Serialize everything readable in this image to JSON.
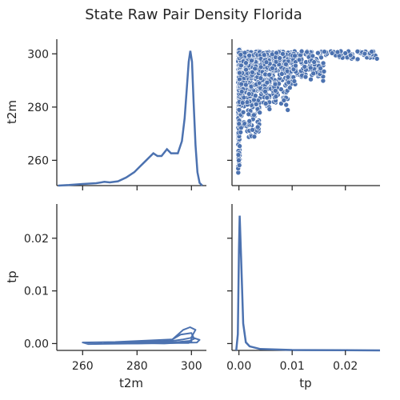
{
  "chart_data": {
    "type": "pairplot",
    "title": "State Raw Pair Density Florida",
    "variables": [
      "t2m",
      "tp"
    ],
    "line_color": "#4c72b0",
    "t2m_axis": {
      "label": "t2m",
      "lim": [
        250.5,
        305.5
      ],
      "ticks": [
        260,
        280,
        300
      ],
      "tick_labels": [
        "260",
        "280",
        "300"
      ]
    },
    "tp_axis": {
      "label": "tp",
      "lim": [
        -0.0013,
        0.0265
      ],
      "ticks": [
        0.0,
        0.01,
        0.02
      ],
      "tick_labels": [
        "0.00",
        "0.01",
        "0.02"
      ]
    },
    "tp_y_axis": {
      "label": "tp",
      "ticks": [
        0.0,
        0.01,
        0.02
      ],
      "tick_labels": [
        "0.00",
        "0.01",
        "0.02"
      ]
    },
    "panels": [
      {
        "position": "t2m-diagonal",
        "type": "kde",
        "density_max": 1.0,
        "points": [
          [
            251,
            0.0
          ],
          [
            255,
            0.004
          ],
          [
            260,
            0.012
          ],
          [
            265,
            0.018
          ],
          [
            268,
            0.028
          ],
          [
            270,
            0.024
          ],
          [
            273,
            0.032
          ],
          [
            276,
            0.06
          ],
          [
            279,
            0.1
          ],
          [
            281,
            0.14
          ],
          [
            283,
            0.18
          ],
          [
            284.5,
            0.21
          ],
          [
            286,
            0.24
          ],
          [
            287.5,
            0.22
          ],
          [
            289,
            0.22
          ],
          [
            291,
            0.27
          ],
          [
            292.5,
            0.24
          ],
          [
            295,
            0.24
          ],
          [
            296.5,
            0.33
          ],
          [
            297.5,
            0.5
          ],
          [
            298.3,
            0.72
          ],
          [
            299,
            0.92
          ],
          [
            299.6,
            1.0
          ],
          [
            300.2,
            0.92
          ],
          [
            300.8,
            0.62
          ],
          [
            301.5,
            0.3
          ],
          [
            302.2,
            0.1
          ],
          [
            303,
            0.02
          ],
          [
            304,
            0.0
          ]
        ]
      },
      {
        "position": "tp-diagonal",
        "type": "kde",
        "density_max": 1.0,
        "points": [
          [
            -0.0005,
            0.0
          ],
          [
            -0.0002,
            0.12
          ],
          [
            0.0,
            0.75
          ],
          [
            0.00015,
            1.0
          ],
          [
            0.0004,
            0.7
          ],
          [
            0.0008,
            0.2
          ],
          [
            0.0013,
            0.06
          ],
          [
            0.002,
            0.03
          ],
          [
            0.004,
            0.01
          ],
          [
            0.01,
            0.003
          ],
          [
            0.02,
            0.001
          ],
          [
            0.0265,
            0.0
          ]
        ]
      },
      {
        "position": "scatter-t2m-vs-tp",
        "type": "scatter",
        "x_var": "tp",
        "y_var": "t2m",
        "n_points": 1200,
        "clusters": [
          {
            "tp": 0.0,
            "t2m_range": [
              254,
              302
            ],
            "count": 320
          },
          {
            "tp_range": [
              0.0,
              0.004
            ],
            "t2m_range": [
              268,
              301
            ],
            "count": 380
          },
          {
            "tp_range": [
              0.004,
              0.01
            ],
            "t2m_range": [
              278,
              301
            ],
            "count": 300
          },
          {
            "tp_range": [
              0.01,
              0.016
            ],
            "t2m_range": [
              288,
              301
            ],
            "count": 140
          },
          {
            "tp_range": [
              0.016,
              0.026
            ],
            "t2m_range": [
              297,
              301
            ],
            "count": 60
          }
        ]
      },
      {
        "position": "kde2d-tp-vs-t2m",
        "type": "kde2d",
        "x_var": "t2m",
        "y_var": "tp",
        "levels": [
          {
            "points": [
              [
                260,
                0.0002
              ],
              [
                272,
                0.0003
              ],
              [
                285,
                0.0006
              ],
              [
                293,
                0.0008
              ],
              [
                297,
                0.0026
              ],
              [
                299.5,
                0.0031
              ],
              [
                301.5,
                0.0026
              ],
              [
                300,
                0.0012
              ],
              [
                303,
                0.0007
              ],
              [
                302,
                0.0002
              ],
              [
                280,
                0.0
              ],
              [
                262,
                -0.0001
              ],
              [
                260,
                0.0002
              ]
            ]
          },
          {
            "points": [
              [
                268,
                0.0001
              ],
              [
                282,
                0.0003
              ],
              [
                292,
                0.0005
              ],
              [
                296,
                0.0017
              ],
              [
                300,
                0.002
              ],
              [
                301,
                0.0009
              ],
              [
                298,
                0.0002
              ],
              [
                280,
                0.0
              ],
              [
                268,
                0.0001
              ]
            ]
          },
          {
            "points": [
              [
                278,
                0.0001
              ],
              [
                290,
                0.0003
              ],
              [
                297,
                0.0008
              ],
              [
                300,
                0.0011
              ],
              [
                300,
                0.0003
              ],
              [
                290,
                0.0
              ],
              [
                278,
                0.0001
              ]
            ]
          },
          {
            "points": [
              [
                288,
                0.0001
              ],
              [
                295,
                0.0003
              ],
              [
                299,
                0.0005
              ],
              [
                299,
                0.0001
              ],
              [
                288,
                0.0001
              ]
            ]
          }
        ]
      }
    ]
  }
}
